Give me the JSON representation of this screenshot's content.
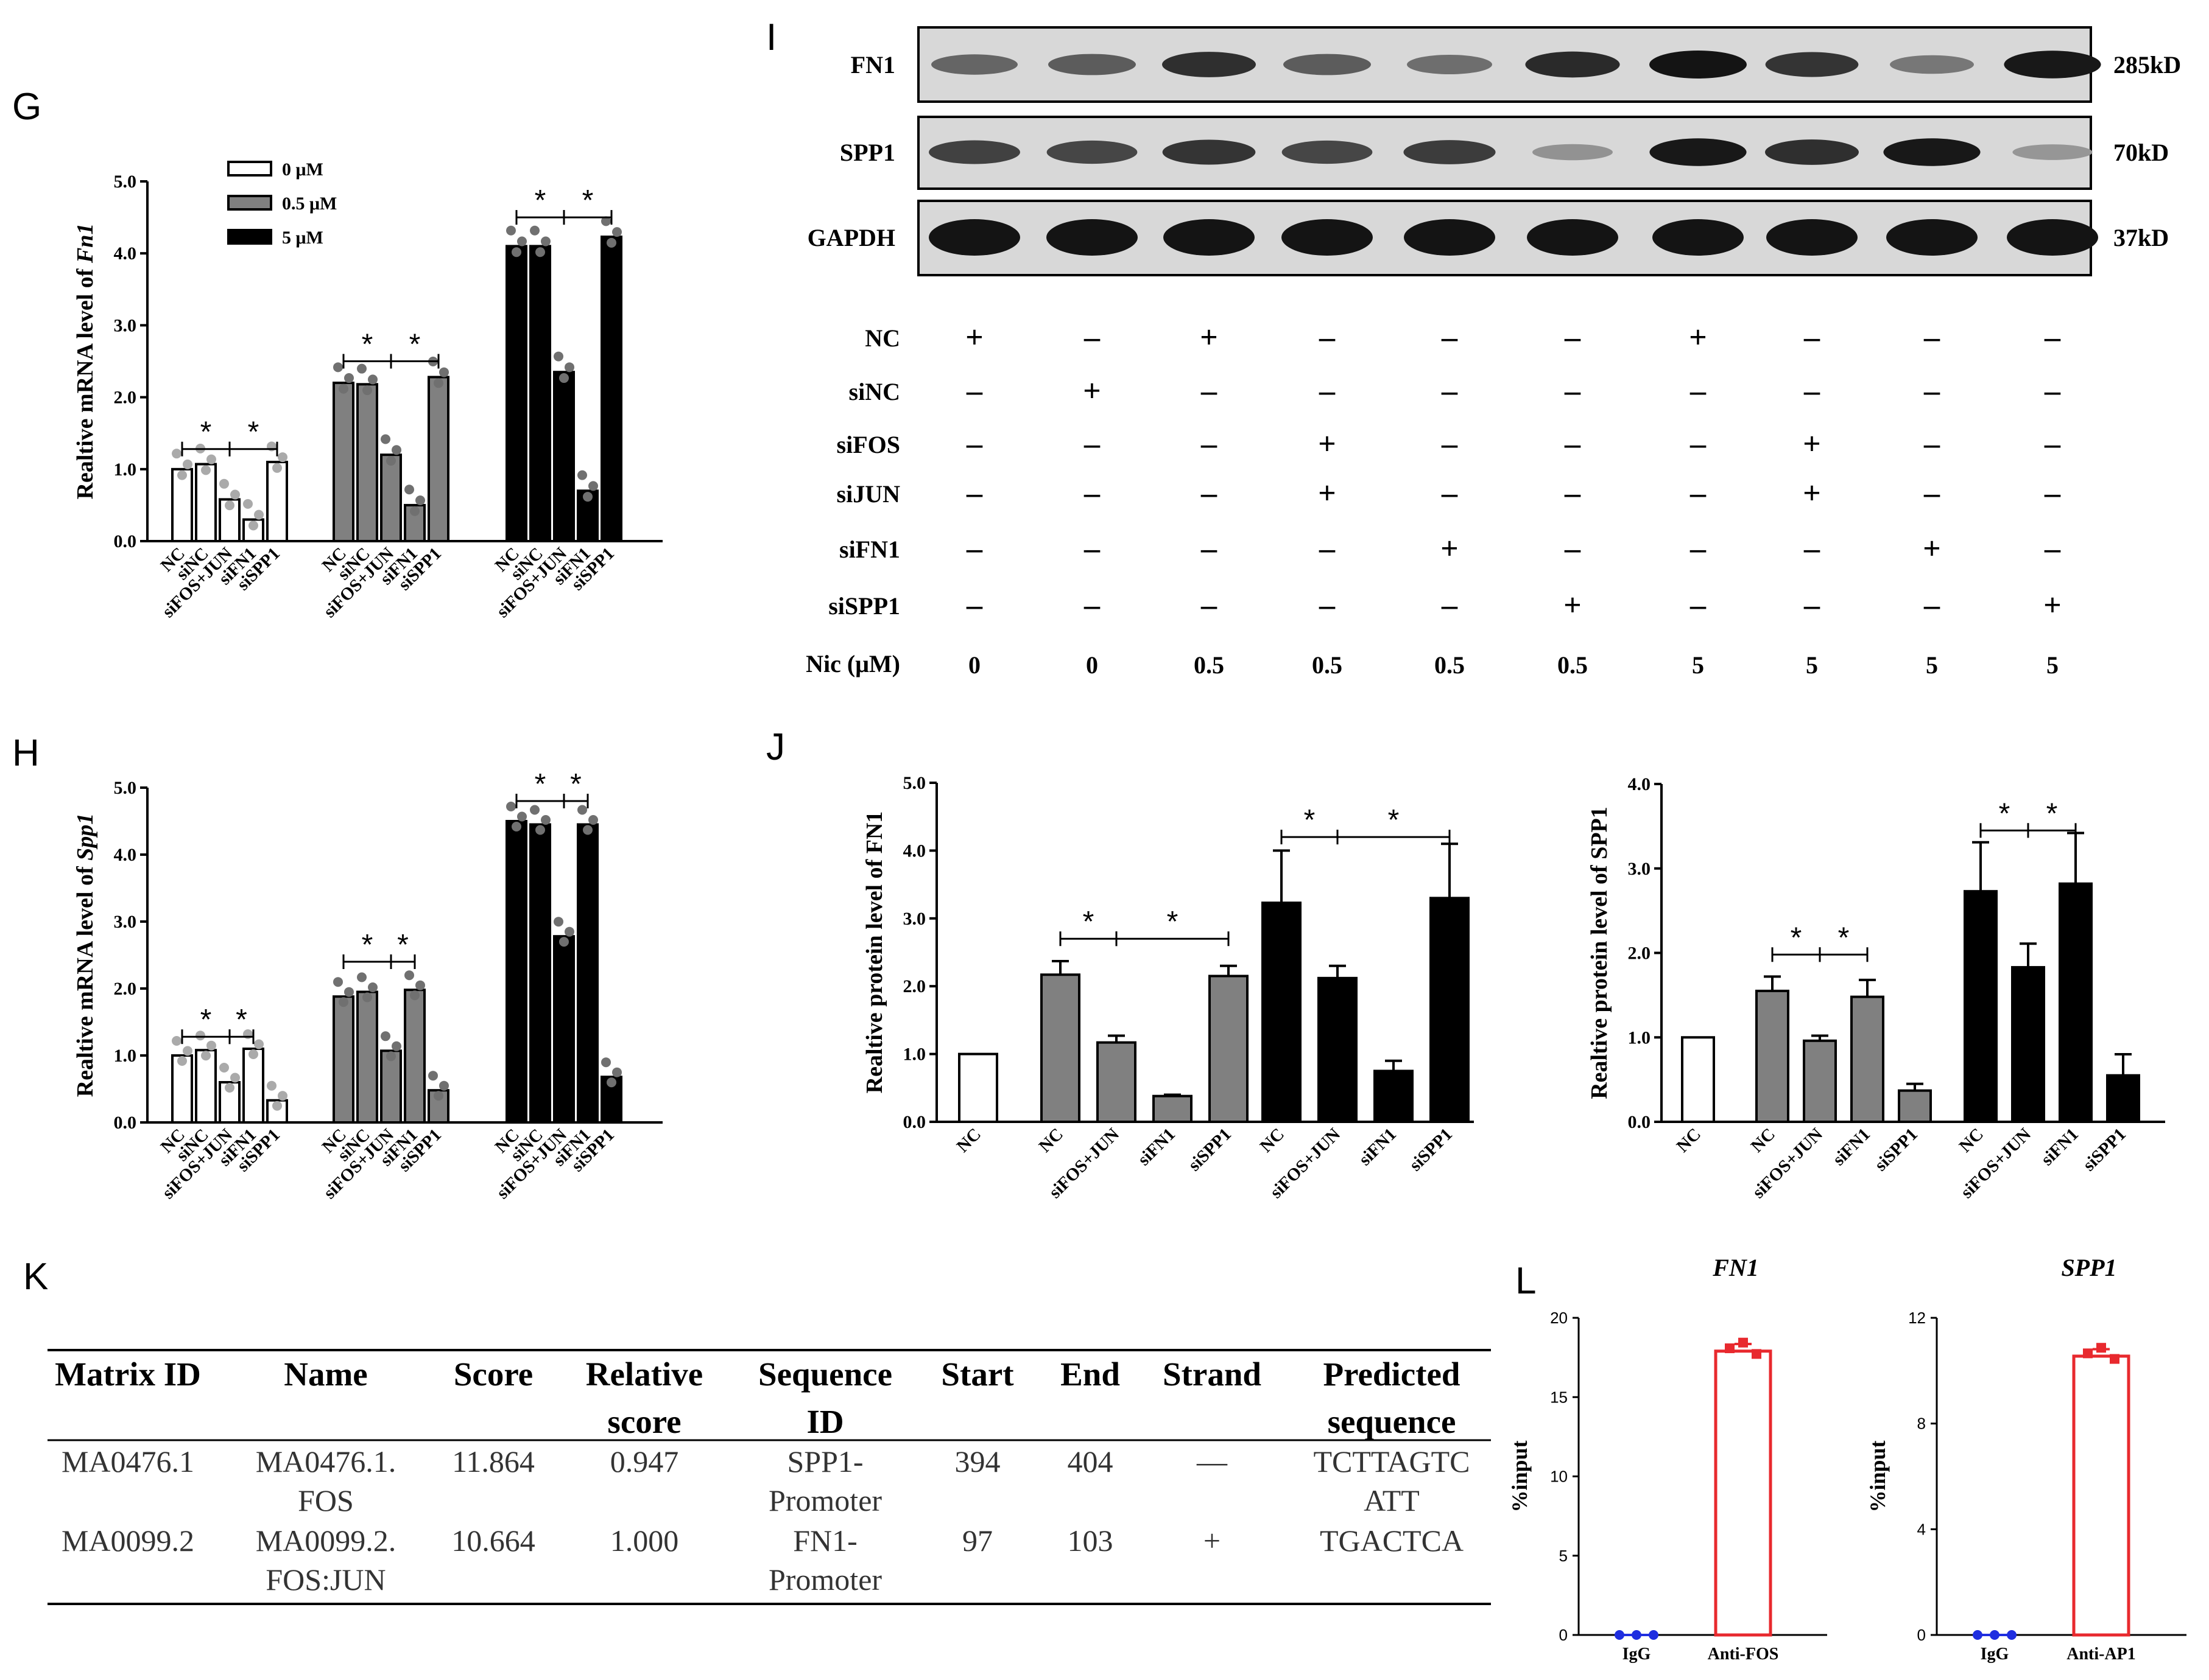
{
  "panels": {
    "G": "G",
    "H": "H",
    "I": "I",
    "J": "J",
    "K": "K",
    "L": "L"
  },
  "legend": [
    {
      "label": "0 μM",
      "fill": "#ffffff"
    },
    {
      "label": "0.5 μM",
      "fill": "#808080"
    },
    {
      "label": "5 μM",
      "fill": "#000000"
    }
  ],
  "colors": {
    "white_bar": "#ffffff",
    "grey_bar": "#808080",
    "black_bar": "#000000",
    "red": "#e8292e",
    "blue": "#1f2ee0",
    "dot": "#6e6e6e"
  },
  "chart_data": [
    {
      "id": "G",
      "type": "bar",
      "ylabel_prefix": "Realtive mRNA level of ",
      "ylabel_gene": "Fn1",
      "ylim": [
        0,
        5
      ],
      "yticks": [
        "0.0",
        "1.0",
        "2.0",
        "3.0",
        "4.0",
        "5.0"
      ],
      "groups": [
        {
          "fill": "white",
          "categories": [
            "NC",
            "siNC",
            "siFOS+JUN",
            "siFN1",
            "siSPP1"
          ],
          "values": [
            1.0,
            1.07,
            0.58,
            0.3,
            1.1
          ]
        },
        {
          "fill": "grey",
          "categories": [
            "NC",
            "siNC",
            "siFOS+JUN",
            "siFN1",
            "siSPP1"
          ],
          "values": [
            2.2,
            2.18,
            1.2,
            0.5,
            2.28
          ]
        },
        {
          "fill": "black",
          "categories": [
            "NC",
            "siNC",
            "siFOS+JUN",
            "siFN1",
            "siSPP1"
          ],
          "values": [
            4.1,
            4.1,
            2.35,
            0.7,
            4.23
          ]
        }
      ],
      "significance": "*"
    },
    {
      "id": "H",
      "type": "bar",
      "ylabel_prefix": "Realtive mRNA level of ",
      "ylabel_gene": "Spp1",
      "ylim": [
        0,
        5
      ],
      "yticks": [
        "0.0",
        "1.0",
        "2.0",
        "3.0",
        "4.0",
        "5.0"
      ],
      "groups": [
        {
          "fill": "white",
          "categories": [
            "NC",
            "siNC",
            "siFOS+JUN",
            "siFN1",
            "siSPP1"
          ],
          "values": [
            1.0,
            1.08,
            0.6,
            1.1,
            0.33
          ]
        },
        {
          "fill": "grey",
          "categories": [
            "NC",
            "siNC",
            "siFOS+JUN",
            "siFN1",
            "siSPP1"
          ],
          "values": [
            1.88,
            1.95,
            1.07,
            1.98,
            0.48
          ]
        },
        {
          "fill": "black",
          "categories": [
            "NC",
            "siNC",
            "siFOS+JUN",
            "siFN1",
            "siSPP1"
          ],
          "values": [
            4.5,
            4.45,
            2.78,
            4.45,
            0.68
          ]
        }
      ],
      "significance": "*"
    },
    {
      "id": "J1",
      "type": "bar",
      "ylabel": "Realtive protein level of FN1",
      "ylim": [
        0,
        5
      ],
      "yticks": [
        "0.0",
        "1.0",
        "2.0",
        "3.0",
        "4.0",
        "5.0"
      ],
      "groups": [
        {
          "fill": "white",
          "categories": [
            "NC"
          ],
          "values": [
            1.0
          ],
          "errors": [
            0
          ]
        },
        {
          "fill": "grey",
          "categories": [
            "NC",
            "siFOS+JUN",
            "siFN1",
            "siSPP1"
          ],
          "values": [
            2.17,
            1.17,
            0.38,
            2.15
          ],
          "errors": [
            0.2,
            0.1,
            0.02,
            0.15
          ]
        },
        {
          "fill": "black",
          "categories": [
            "NC",
            "siFOS+JUN",
            "siFN1",
            "siSPP1"
          ],
          "values": [
            3.23,
            2.12,
            0.75,
            3.3
          ],
          "errors": [
            0.77,
            0.18,
            0.15,
            0.8
          ]
        }
      ],
      "significance": "*"
    },
    {
      "id": "J2",
      "type": "bar",
      "ylabel": "Realtive protein level of SPP1",
      "ylim": [
        0,
        4
      ],
      "yticks": [
        "0.0",
        "1.0",
        "2.0",
        "3.0",
        "4.0"
      ],
      "groups": [
        {
          "fill": "white",
          "categories": [
            "NC"
          ],
          "values": [
            1.0
          ],
          "errors": [
            0
          ]
        },
        {
          "fill": "grey",
          "categories": [
            "NC",
            "siFOS+JUN",
            "siFN1",
            "siSPP1"
          ],
          "values": [
            1.55,
            0.96,
            1.48,
            0.37
          ],
          "errors": [
            0.17,
            0.06,
            0.2,
            0.08
          ]
        },
        {
          "fill": "black",
          "categories": [
            "NC",
            "siFOS+JUN",
            "siFN1",
            "siSPP1"
          ],
          "values": [
            2.73,
            1.83,
            2.82,
            0.55
          ],
          "errors": [
            0.58,
            0.28,
            0.6,
            0.25
          ]
        }
      ],
      "significance": "*"
    },
    {
      "id": "L1",
      "type": "bar",
      "title": "FN1",
      "ylabel": "%input",
      "ylim": [
        0,
        20
      ],
      "yticks": [
        "0",
        "5",
        "10",
        "15",
        "20"
      ],
      "categories": [
        "IgG",
        "Anti-FOS"
      ],
      "values": [
        0.05,
        17.9
      ]
    },
    {
      "id": "L2",
      "type": "bar",
      "title": "SPP1",
      "ylabel": "%input",
      "ylim": [
        0,
        12
      ],
      "yticks": [
        "0",
        "4",
        "8",
        "12"
      ],
      "categories": [
        "IgG",
        "Anti-AP1"
      ],
      "values": [
        0.03,
        10.55
      ]
    }
  ],
  "blot": {
    "bands": [
      {
        "name": "FN1",
        "size": "285kD",
        "intensities": [
          0.55,
          0.6,
          0.85,
          0.6,
          0.5,
          0.88,
          1.0,
          0.82,
          0.45,
          0.98
        ]
      },
      {
        "name": "SPP1",
        "size": "70kD",
        "intensities": [
          0.75,
          0.72,
          0.82,
          0.72,
          0.78,
          0.3,
          0.98,
          0.85,
          0.98,
          0.28
        ]
      },
      {
        "name": "GAPDH",
        "size": "37kD",
        "intensities": [
          1,
          1,
          1,
          1,
          1,
          1,
          1,
          1,
          1,
          1
        ]
      }
    ],
    "rows": [
      {
        "label": "NC",
        "signs": [
          "+",
          "–",
          "+",
          "–",
          "–",
          "–",
          "+",
          "–",
          "–",
          "–"
        ]
      },
      {
        "label": "siNC",
        "signs": [
          "–",
          "+",
          "–",
          "–",
          "–",
          "–",
          "–",
          "–",
          "–",
          "–"
        ]
      },
      {
        "label": "siFOS",
        "signs": [
          "–",
          "–",
          "–",
          "+",
          "–",
          "–",
          "–",
          "+",
          "–",
          "–"
        ]
      },
      {
        "label": "siJUN",
        "signs": [
          "–",
          "–",
          "–",
          "+",
          "–",
          "–",
          "–",
          "+",
          "–",
          "–"
        ]
      },
      {
        "label": "siFN1",
        "signs": [
          "–",
          "–",
          "–",
          "–",
          "+",
          "–",
          "–",
          "–",
          "+",
          "–"
        ]
      },
      {
        "label": "siSPP1",
        "signs": [
          "–",
          "–",
          "–",
          "–",
          "–",
          "+",
          "–",
          "–",
          "–",
          "+"
        ]
      },
      {
        "label": "Nic  (μM)",
        "signs": [
          "0",
          "0",
          "0.5",
          "0.5",
          "0.5",
          "0.5",
          "5",
          "5",
          "5",
          "5"
        ]
      }
    ]
  },
  "table": {
    "headers": [
      [
        "Matrix ID"
      ],
      [
        "Name"
      ],
      [
        "Score"
      ],
      [
        "Relative",
        "score"
      ],
      [
        "Sequence",
        "ID"
      ],
      [
        "Start"
      ],
      [
        "End"
      ],
      [
        "Strand"
      ],
      [
        "Predicted",
        "sequence"
      ]
    ],
    "rows": [
      [
        [
          "MA0476.1"
        ],
        [
          "MA0476.1.",
          "FOS"
        ],
        [
          "11.864"
        ],
        [
          "0.947"
        ],
        [
          "SPP1-",
          "Promoter"
        ],
        [
          "394"
        ],
        [
          "404"
        ],
        [
          "—"
        ],
        [
          "TCTTAGTC",
          "ATT"
        ]
      ],
      [
        [
          "MA0099.2"
        ],
        [
          "MA0099.2.",
          "FOS:JUN"
        ],
        [
          "10.664"
        ],
        [
          "1.000"
        ],
        [
          "FN1-",
          "Promoter"
        ],
        [
          "97"
        ],
        [
          "103"
        ],
        [
          "+"
        ],
        [
          "TGACTCA"
        ]
      ]
    ]
  }
}
